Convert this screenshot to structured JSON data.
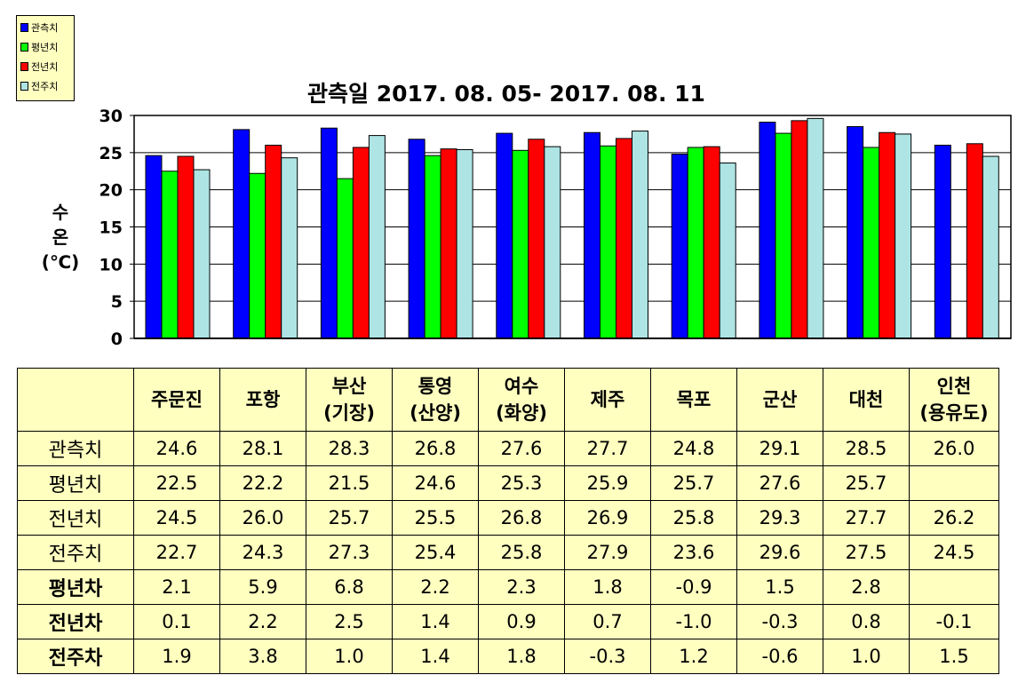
{
  "chart_data": {
    "type": "bar",
    "title": "관측일 2017. 08. 05- 2017. 08. 11",
    "ylabel_lines": [
      "수",
      "온",
      "(℃)"
    ],
    "ylim": [
      0,
      30
    ],
    "yticks": [
      0,
      5,
      10,
      15,
      20,
      25,
      30
    ],
    "grid": true,
    "legend_position": "top-left",
    "categories": [
      "주문진",
      "포항",
      "부산(기장)",
      "통영(산양)",
      "여수(화양)",
      "제주",
      "목포",
      "군산",
      "대천",
      "인천(용유도)"
    ],
    "series": [
      {
        "name": "관측치",
        "color": "#0000ff",
        "values": [
          24.6,
          28.1,
          28.3,
          26.8,
          27.6,
          27.7,
          24.8,
          29.1,
          28.5,
          26.0
        ]
      },
      {
        "name": "평년치",
        "color": "#00ff00",
        "values": [
          22.5,
          22.2,
          21.5,
          24.6,
          25.3,
          25.9,
          25.7,
          27.6,
          25.7,
          null
        ]
      },
      {
        "name": "전년치",
        "color": "#ff0000",
        "values": [
          24.5,
          26.0,
          25.7,
          25.5,
          26.8,
          26.9,
          25.8,
          29.3,
          27.7,
          26.2
        ]
      },
      {
        "name": "전주치",
        "color": "#aee4e4",
        "values": [
          22.7,
          24.3,
          27.3,
          25.4,
          25.8,
          27.9,
          23.6,
          29.6,
          27.5,
          24.5
        ]
      }
    ]
  },
  "table": {
    "headers": [
      [
        "주문진"
      ],
      [
        "포항"
      ],
      [
        "부산",
        "(기장)"
      ],
      [
        "통영",
        "(산양)"
      ],
      [
        "여수",
        "(화양)"
      ],
      [
        "제주"
      ],
      [
        "목포"
      ],
      [
        "군산"
      ],
      [
        "대천"
      ],
      [
        "인천",
        "(용유도)"
      ]
    ],
    "rows": [
      {
        "label": "관측치",
        "bold": false,
        "cells": [
          "24.6",
          "28.1",
          "28.3",
          "26.8",
          "27.6",
          "27.7",
          "24.8",
          "29.1",
          "28.5",
          "26.0"
        ]
      },
      {
        "label": "평년치",
        "bold": false,
        "cells": [
          "22.5",
          "22.2",
          "21.5",
          "24.6",
          "25.3",
          "25.9",
          "25.7",
          "27.6",
          "25.7",
          ""
        ]
      },
      {
        "label": "전년치",
        "bold": false,
        "cells": [
          "24.5",
          "26.0",
          "25.7",
          "25.5",
          "26.8",
          "26.9",
          "25.8",
          "29.3",
          "27.7",
          "26.2"
        ]
      },
      {
        "label": "전주치",
        "bold": false,
        "cells": [
          "22.7",
          "24.3",
          "27.3",
          "25.4",
          "25.8",
          "27.9",
          "23.6",
          "29.6",
          "27.5",
          "24.5"
        ]
      },
      {
        "label": "평년차",
        "bold": true,
        "cells": [
          "2.1",
          "5.9",
          "6.8",
          "2.2",
          "2.3",
          "1.8",
          "-0.9",
          "1.5",
          "2.8",
          ""
        ]
      },
      {
        "label": "전년차",
        "bold": true,
        "cells": [
          "0.1",
          "2.2",
          "2.5",
          "1.4",
          "0.9",
          "0.7",
          "-1.0",
          "-0.3",
          "0.8",
          "-0.1"
        ]
      },
      {
        "label": "전주차",
        "bold": true,
        "cells": [
          "1.9",
          "3.8",
          "1.0",
          "1.4",
          "1.8",
          "-0.3",
          "1.2",
          "-0.6",
          "1.0",
          "1.5"
        ]
      }
    ]
  }
}
